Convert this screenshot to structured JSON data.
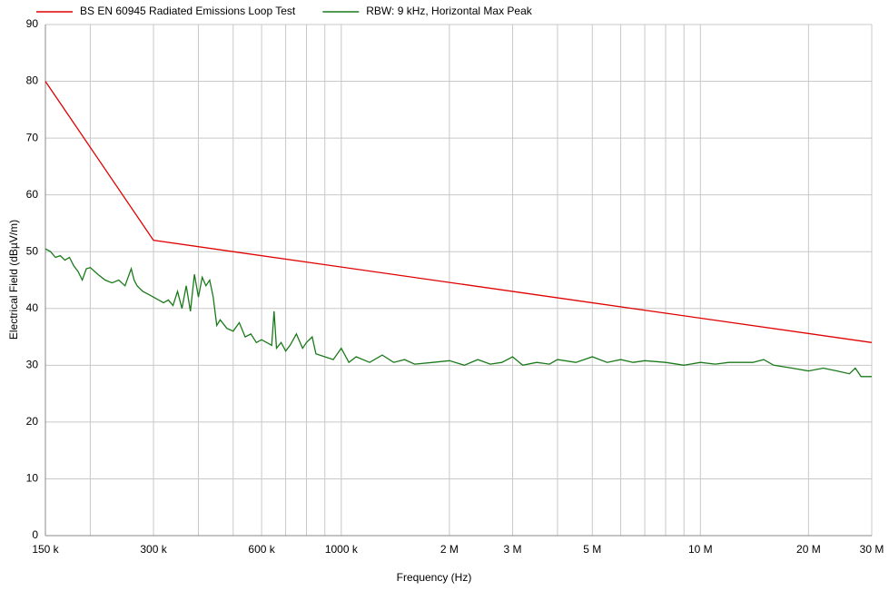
{
  "chart_data": {
    "type": "line",
    "xlabel": "Frequency (Hz)",
    "ylabel": "Electrical Field (dBµV/m)",
    "xscale": "log",
    "grid": true,
    "legend": "top",
    "xlim": [
      150000,
      30000000
    ],
    "ylim": [
      0,
      90
    ],
    "yticks": [
      0,
      10,
      20,
      30,
      40,
      50,
      60,
      70,
      80,
      90
    ],
    "xticks": [
      {
        "value": 150000,
        "label": "150 k"
      },
      {
        "value": 300000,
        "label": "300 k"
      },
      {
        "value": 600000,
        "label": "600 k"
      },
      {
        "value": 1000000,
        "label": "1000 k"
      },
      {
        "value": 2000000,
        "label": "2 M"
      },
      {
        "value": 3000000,
        "label": "3 M"
      },
      {
        "value": 5000000,
        "label": "5 M"
      },
      {
        "value": 10000000,
        "label": "10 M"
      },
      {
        "value": 20000000,
        "label": "20 M"
      },
      {
        "value": 30000000,
        "label": "30 M"
      }
    ],
    "xminorticks": [
      200000,
      400000,
      500000,
      700000,
      800000,
      900000,
      4000000,
      6000000,
      7000000,
      8000000,
      9000000
    ],
    "series": [
      {
        "name": "BS EN 60945 Radiated Emissions Loop Test",
        "color": "#e00000",
        "x": [
          150000,
          300000,
          30000000
        ],
        "values": [
          80,
          52,
          34
        ]
      },
      {
        "name": "RBW: 9 kHz, Horizontal Max Peak",
        "color": "#1a7a1a",
        "x": [
          150000,
          155000,
          160000,
          165000,
          170000,
          175000,
          180000,
          185000,
          190000,
          195000,
          200000,
          210000,
          220000,
          230000,
          240000,
          250000,
          260000,
          265000,
          270000,
          280000,
          290000,
          300000,
          310000,
          320000,
          330000,
          340000,
          350000,
          360000,
          370000,
          380000,
          390000,
          400000,
          410000,
          420000,
          430000,
          440000,
          450000,
          460000,
          480000,
          500000,
          520000,
          540000,
          560000,
          580000,
          600000,
          620000,
          640000,
          650000,
          660000,
          680000,
          700000,
          720000,
          750000,
          780000,
          800000,
          830000,
          850000,
          900000,
          950000,
          1000000,
          1050000,
          1100000,
          1200000,
          1300000,
          1400000,
          1500000,
          1600000,
          1800000,
          2000000,
          2200000,
          2400000,
          2600000,
          2800000,
          3000000,
          3200000,
          3500000,
          3800000,
          4000000,
          4500000,
          5000000,
          5500000,
          6000000,
          6500000,
          7000000,
          8000000,
          9000000,
          10000000,
          11000000,
          12000000,
          14000000,
          15000000,
          16000000,
          18000000,
          20000000,
          22000000,
          24000000,
          26000000,
          27000000,
          28000000,
          30000000
        ],
        "values": [
          50.5,
          50,
          49,
          49.3,
          48.5,
          49,
          47.5,
          46.5,
          45,
          47,
          47.2,
          46,
          45,
          44.5,
          45,
          44,
          47,
          45,
          44,
          43,
          42.5,
          42,
          41.5,
          41,
          41.5,
          40.5,
          43,
          40,
          44,
          39.5,
          46,
          42,
          45.5,
          44,
          45,
          42,
          37,
          38,
          36.5,
          36,
          37.5,
          35,
          35.5,
          34,
          34.5,
          34,
          33.5,
          39.5,
          33,
          34,
          32.5,
          33.5,
          35.5,
          33,
          34,
          35,
          32,
          31.5,
          31,
          33,
          30.5,
          31.5,
          30.5,
          31.8,
          30.5,
          31,
          30.2,
          30.5,
          30.8,
          30,
          31,
          30.2,
          30.5,
          31.5,
          30,
          30.5,
          30.2,
          31,
          30.5,
          31.5,
          30.5,
          31,
          30.5,
          30.8,
          30.5,
          30,
          30.5,
          30.2,
          30.5,
          30.5,
          31,
          30,
          29.5,
          29,
          29.5,
          29,
          28.5,
          29.5,
          28,
          28
        ]
      }
    ]
  }
}
